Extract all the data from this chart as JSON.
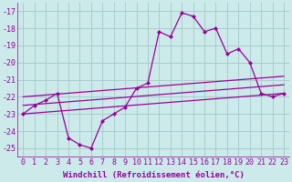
{
  "xlabel": "Windchill (Refroidissement éolien,°C)",
  "background_color": "#cceaea",
  "grid_color": "#aacccc",
  "line_color": "#990099",
  "hours": [
    0,
    1,
    2,
    3,
    4,
    5,
    6,
    7,
    8,
    9,
    10,
    11,
    12,
    13,
    14,
    15,
    16,
    17,
    18,
    19,
    20,
    21,
    22,
    23
  ],
  "windchill": [
    -23.0,
    -22.5,
    -22.2,
    -21.8,
    -24.4,
    -24.8,
    -25.0,
    -23.4,
    -23.0,
    -22.6,
    -21.5,
    -21.2,
    -18.2,
    -18.5,
    -17.1,
    -17.3,
    -18.2,
    -18.0,
    -19.5,
    -19.2,
    -20.0,
    -21.8,
    -22.0,
    -21.8
  ],
  "trend_lines": [
    {
      "x": [
        0,
        23
      ],
      "y": [
        -23.0,
        -21.8
      ]
    },
    {
      "x": [
        0,
        23
      ],
      "y": [
        -22.5,
        -21.3
      ]
    },
    {
      "x": [
        0,
        23
      ],
      "y": [
        -22.0,
        -20.8
      ]
    }
  ],
  "ylim_min": -25.5,
  "ylim_max": -16.5,
  "yticks": [
    -25,
    -24,
    -23,
    -22,
    -21,
    -20,
    -19,
    -18,
    -17
  ],
  "xlim_min": -0.5,
  "xlim_max": 23.5,
  "tick_fontsize": 6.0,
  "label_fontsize": 6.5
}
